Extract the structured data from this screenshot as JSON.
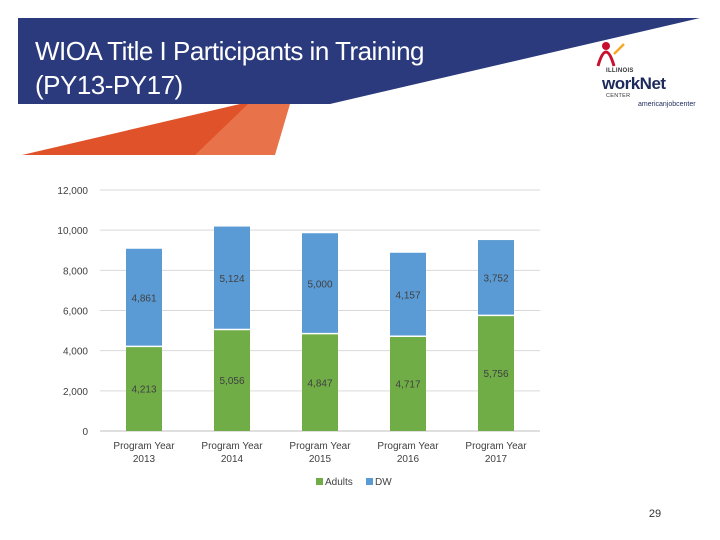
{
  "slide": {
    "title_line1": "WIOA Title I Participants in Training",
    "title_line2": "(PY13-PY17)",
    "page_number": "29"
  },
  "logo": {
    "illinois": "ILLINOIS",
    "worknet": "workNet",
    "center": "CENTER",
    "ajc": "americanjobcenter"
  },
  "colors": {
    "header_navy": "#2b3a7c",
    "header_orange": "#e0522a",
    "adults_green": "#70ad47",
    "dw_blue": "#5b9bd5"
  },
  "chart_data": {
    "type": "bar",
    "stacked": true,
    "categories": [
      "Program Year\n2013",
      "Program Year\n2014",
      "Program Year\n2015",
      "Program Year\n2016",
      "Program Year\n2017"
    ],
    "series": [
      {
        "name": "Adults",
        "color": "#70ad47",
        "values": [
          4213,
          5056,
          4847,
          4717,
          5756
        ],
        "labels": [
          "4,213",
          "5,056",
          "4,847",
          "4,717",
          "5,756"
        ]
      },
      {
        "name": "DW",
        "color": "#5b9bd5",
        "values": [
          4861,
          5124,
          5000,
          4157,
          3752
        ],
        "labels": [
          "4,861",
          "5,124",
          "5,000",
          "4,157",
          "3,752"
        ]
      }
    ],
    "ylim": [
      0,
      12000
    ],
    "yticks": [
      0,
      2000,
      4000,
      6000,
      8000,
      10000,
      12000
    ],
    "ytick_labels": [
      "0",
      "2,000",
      "4,000",
      "6,000",
      "8,000",
      "10,000",
      "12,000"
    ],
    "grid": true,
    "legend": "bottom"
  }
}
